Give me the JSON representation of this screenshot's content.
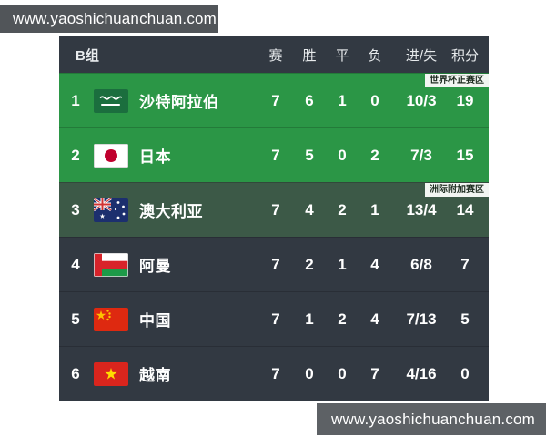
{
  "watermarks": {
    "top": "www.yaoshichuanchuan.com",
    "bottom": "www.yaoshichuanchuan.com"
  },
  "table": {
    "group_label": "B组",
    "columns": {
      "played": "赛",
      "won": "胜",
      "drawn": "平",
      "lost": "负",
      "goals": "进/失",
      "points": "积分"
    },
    "rows": [
      {
        "rank": "1",
        "team": "沙特阿拉伯",
        "flag": "saudi-arabia",
        "zone": "qualified",
        "badge": "世界杯正赛区",
        "played": "7",
        "won": "6",
        "drawn": "1",
        "lost": "0",
        "goals": "10/3",
        "points": "19"
      },
      {
        "rank": "2",
        "team": "日本",
        "flag": "japan",
        "zone": "qualified",
        "badge": "",
        "played": "7",
        "won": "5",
        "drawn": "0",
        "lost": "2",
        "goals": "7/3",
        "points": "15"
      },
      {
        "rank": "3",
        "team": "澳大利亚",
        "flag": "australia",
        "zone": "playoff",
        "badge": "洲际附加赛区",
        "played": "7",
        "won": "4",
        "drawn": "2",
        "lost": "1",
        "goals": "13/4",
        "points": "14"
      },
      {
        "rank": "4",
        "team": "阿曼",
        "flag": "oman",
        "zone": "none",
        "badge": "",
        "played": "7",
        "won": "2",
        "drawn": "1",
        "lost": "4",
        "goals": "6/8",
        "points": "7"
      },
      {
        "rank": "5",
        "team": "中国",
        "flag": "china",
        "zone": "none",
        "badge": "",
        "played": "7",
        "won": "1",
        "drawn": "2",
        "lost": "4",
        "goals": "7/13",
        "points": "5"
      },
      {
        "rank": "6",
        "team": "越南",
        "flag": "vietnam",
        "zone": "none",
        "badge": "",
        "played": "7",
        "won": "0",
        "drawn": "0",
        "lost": "7",
        "goals": "4/16",
        "points": "0"
      }
    ],
    "colors": {
      "row-qualified": "#2b9646",
      "row-playoff": "#3c5947",
      "row-default": "#323942",
      "header": "#323942",
      "badge-bg": "#f2f5f2",
      "badge-text": "#1d2c20"
    }
  }
}
